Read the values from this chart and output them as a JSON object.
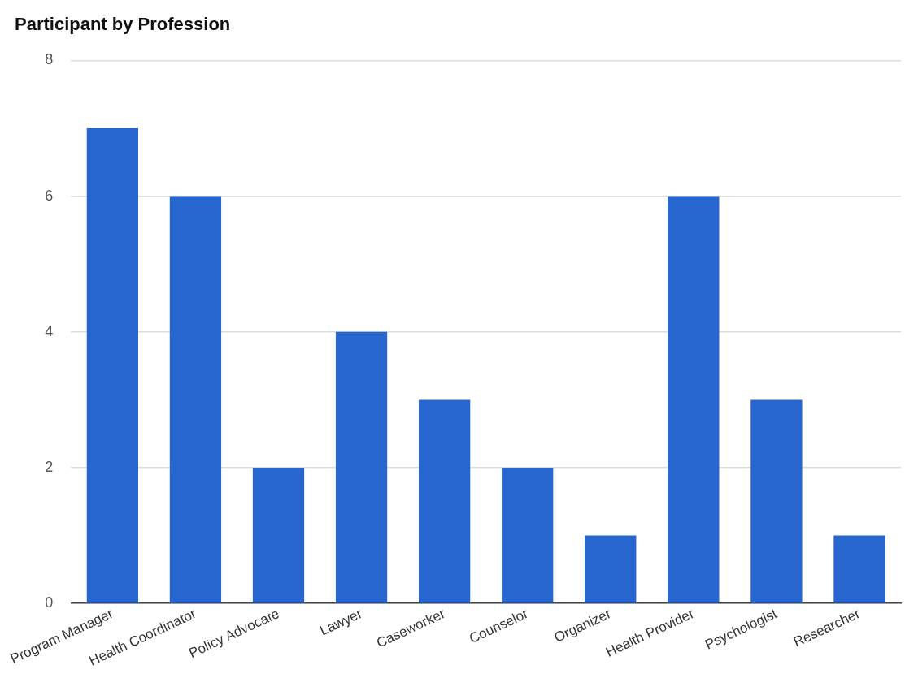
{
  "chart_data": {
    "type": "bar",
    "title": "Participant by Profession",
    "categories": [
      "Program Manager",
      "Health Coordinator",
      "Policy Advocate",
      "Lawyer",
      "Caseworker",
      "Counselor",
      "Organizer",
      "Health Provider",
      "Psychologist",
      "Researcher"
    ],
    "values": [
      7,
      6,
      2,
      4,
      3,
      2,
      1,
      6,
      3,
      1
    ],
    "color": "#2766cf",
    "ylim": [
      0,
      8
    ],
    "yticks": [
      0,
      2,
      4,
      6,
      8
    ],
    "grid": "y",
    "legend": false
  }
}
